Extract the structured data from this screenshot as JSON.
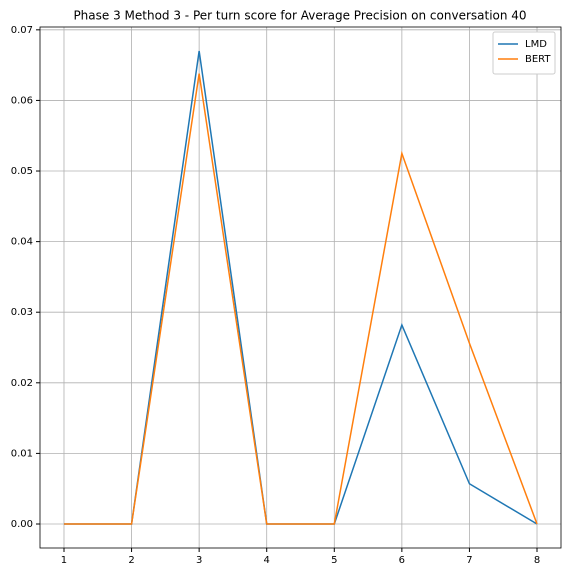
{
  "chart_data": {
    "type": "line",
    "title": "Phase 3 Method 3 - Per turn score for Average Precision on conversation 40",
    "x": [
      1,
      2,
      3,
      4,
      5,
      6,
      7,
      8
    ],
    "series": [
      {
        "name": "LMD",
        "color": "#1f77b4",
        "values": [
          0,
          0,
          0.067,
          0,
          0,
          0.0282,
          0.0057,
          0
        ]
      },
      {
        "name": "BERT",
        "color": "#ff7f0e",
        "values": [
          0,
          0,
          0.0638,
          0,
          0,
          0.0525,
          0.0256,
          0
        ]
      }
    ],
    "xlim": [
      0.645,
      8.355
    ],
    "xticks": [
      1,
      2,
      3,
      4,
      5,
      6,
      7,
      8
    ],
    "ylim": [
      -0.0034,
      0.0704
    ],
    "yticks": [
      {
        "value": 0,
        "label": "0.00"
      },
      {
        "value": 0.01,
        "label": "0.01"
      },
      {
        "value": 0.02,
        "label": "0.02"
      },
      {
        "value": 0.03,
        "label": "0.03"
      },
      {
        "value": 0.04,
        "label": "0.04"
      },
      {
        "value": 0.05,
        "label": "0.05"
      },
      {
        "value": 0.06,
        "label": "0.06"
      },
      {
        "value": 0.07,
        "label": "0.07"
      }
    ],
    "grid": true,
    "legend": "upper right"
  }
}
